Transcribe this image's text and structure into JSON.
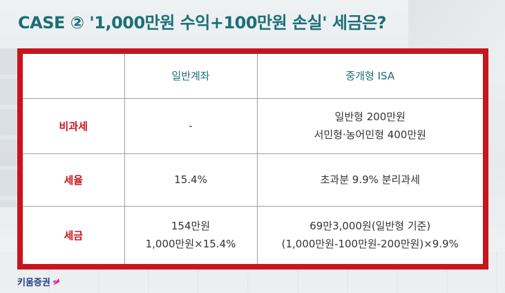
{
  "title": "CASE ② '1,000만원 수익+100만원 손실' 세금은?",
  "table": {
    "headers": [
      "",
      "일반계좌",
      "중개형 ISA"
    ],
    "rows": [
      {
        "label": "비과세",
        "general": [
          "-"
        ],
        "isa": [
          "일반형 200만원",
          "서민형·농어민형 400만원"
        ]
      },
      {
        "label": "세율",
        "general": [
          "15.4%"
        ],
        "isa": [
          "초과분 9.9% 분리과세"
        ]
      },
      {
        "label": "세금",
        "general": [
          "154만원",
          "1,000만원×15.4%"
        ],
        "isa": [
          "69만3,000원(일반형 기준)",
          "(1,000만원-100만원-200만원)×9.9%"
        ]
      }
    ]
  },
  "logo": {
    "text": "키움증권",
    "icon": "kiwoom-logo-icon"
  },
  "colors": {
    "title": "#1b6f77",
    "frame": "#c8151c",
    "rowhead": "#c8151c",
    "header": "#1b6f77"
  }
}
